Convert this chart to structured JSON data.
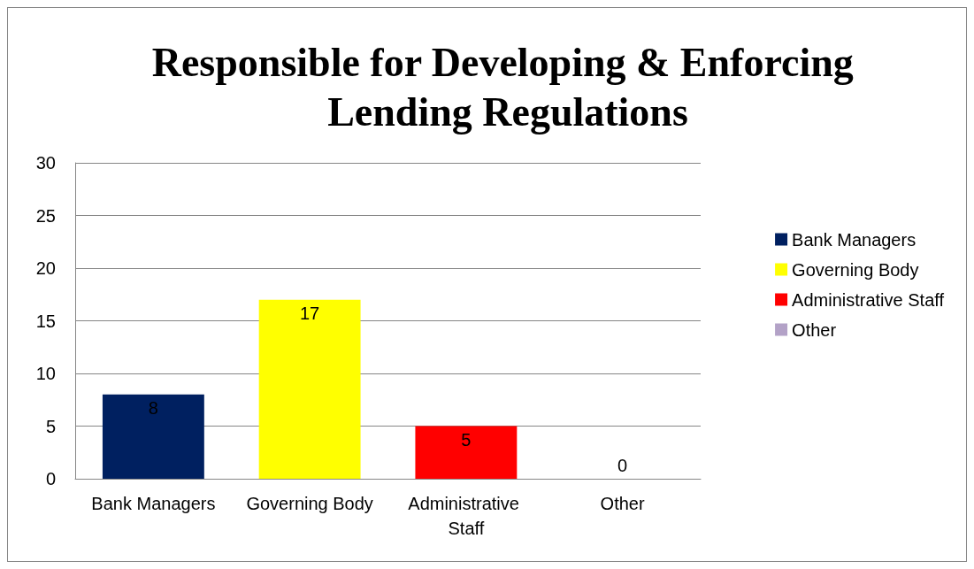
{
  "chart_data": {
    "type": "bar",
    "title": "Responsible for Developing & Enforcing Lending Regulations",
    "categories": [
      "Bank Managers",
      "Governing Body",
      "Administrative Staff",
      "Other"
    ],
    "series": [
      {
        "name": "Bank Managers",
        "color": "#002060",
        "values": [
          8,
          null,
          null,
          null
        ]
      },
      {
        "name": "Governing Body",
        "color": "#ffff00",
        "values": [
          null,
          17,
          null,
          null
        ]
      },
      {
        "name": "Administrative Staff",
        "color": "#ff0000",
        "values": [
          null,
          null,
          5,
          null
        ]
      },
      {
        "name": "Other",
        "color": "#b3a2c7",
        "values": [
          null,
          null,
          null,
          0
        ]
      }
    ],
    "stacked": true,
    "ylim": [
      0,
      30
    ],
    "yticks": [
      0,
      5,
      10,
      15,
      20,
      25,
      30
    ],
    "grid": "y",
    "legend": "right",
    "data_labels": true
  }
}
